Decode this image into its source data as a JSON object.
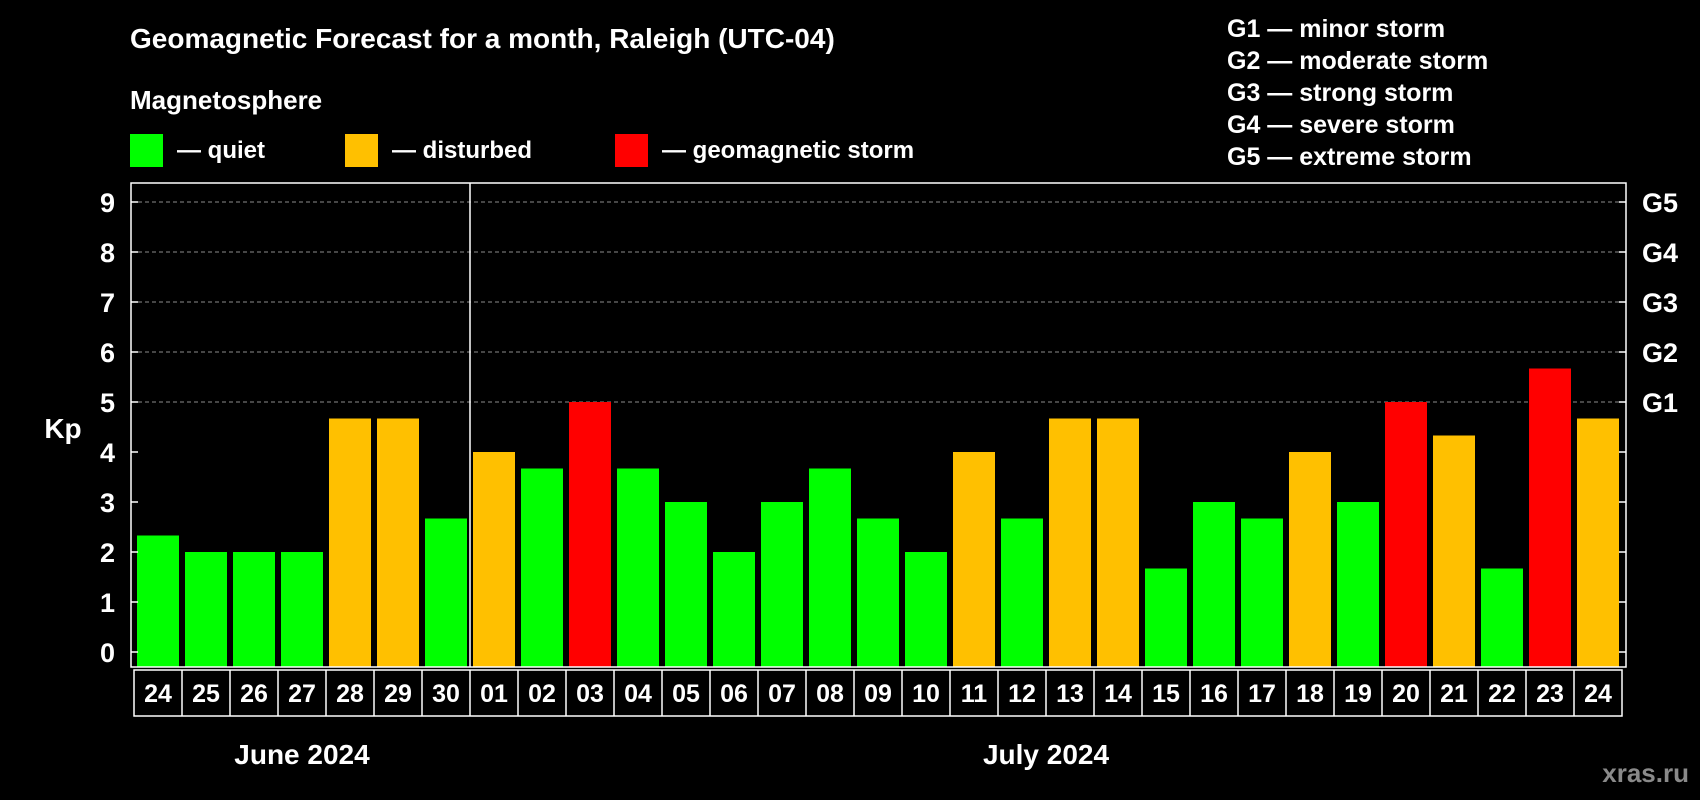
{
  "title": "Geomagnetic Forecast for a month, Raleigh (UTC-04)",
  "legend": {
    "heading": "Magnetosphere",
    "items": [
      {
        "label": "— quiet",
        "color": "#00ff00"
      },
      {
        "label": "— disturbed",
        "color": "#ffc000"
      },
      {
        "label": "— geomagnetic storm",
        "color": "#ff0000"
      }
    ]
  },
  "storm_scale": [
    "G1 — minor storm",
    "G2 — moderate storm",
    "G3 — strong storm",
    "G4 — severe storm",
    "G5 — extreme storm"
  ],
  "watermark": "xras.ru",
  "chart_data": {
    "type": "bar",
    "ylabel": "Kp",
    "ylim": [
      0,
      9
    ],
    "yticks": [
      "0",
      "1",
      "2",
      "3",
      "4",
      "5",
      "6",
      "7",
      "8",
      "9"
    ],
    "right_axis_labels": [
      {
        "kp": 5,
        "label": "G1"
      },
      {
        "kp": 6,
        "label": "G2"
      },
      {
        "kp": 7,
        "label": "G3"
      },
      {
        "kp": 8,
        "label": "G4"
      },
      {
        "kp": 9,
        "label": "G5"
      }
    ],
    "grid": "horizontal dashed from Kp 5 upward",
    "month_groups": [
      {
        "label": "June 2024",
        "start": 0,
        "end": 6
      },
      {
        "label": "July 2024",
        "start": 7,
        "end": 30
      }
    ],
    "categories": [
      "24",
      "25",
      "26",
      "27",
      "28",
      "29",
      "30",
      "01",
      "02",
      "03",
      "04",
      "05",
      "06",
      "07",
      "08",
      "09",
      "10",
      "11",
      "12",
      "13",
      "14",
      "15",
      "16",
      "17",
      "18",
      "19",
      "20",
      "21",
      "22",
      "23",
      "24"
    ],
    "values": [
      2.33,
      2,
      2,
      2,
      4.67,
      4.67,
      2.67,
      4,
      3.67,
      5,
      3.67,
      3,
      2,
      3,
      3.67,
      2.67,
      2,
      4,
      2.67,
      4.67,
      4.67,
      1.67,
      3,
      2.67,
      4,
      3,
      5,
      4.33,
      1.67,
      5.67,
      4.67
    ],
    "status": [
      "quiet",
      "quiet",
      "quiet",
      "quiet",
      "disturbed",
      "disturbed",
      "quiet",
      "disturbed",
      "quiet",
      "storm",
      "quiet",
      "quiet",
      "quiet",
      "quiet",
      "quiet",
      "quiet",
      "quiet",
      "disturbed",
      "quiet",
      "disturbed",
      "disturbed",
      "quiet",
      "quiet",
      "quiet",
      "disturbed",
      "quiet",
      "storm",
      "disturbed",
      "quiet",
      "storm",
      "disturbed"
    ],
    "status_colors": {
      "quiet": "#00ff00",
      "disturbed": "#ffc000",
      "storm": "#ff0000"
    }
  }
}
